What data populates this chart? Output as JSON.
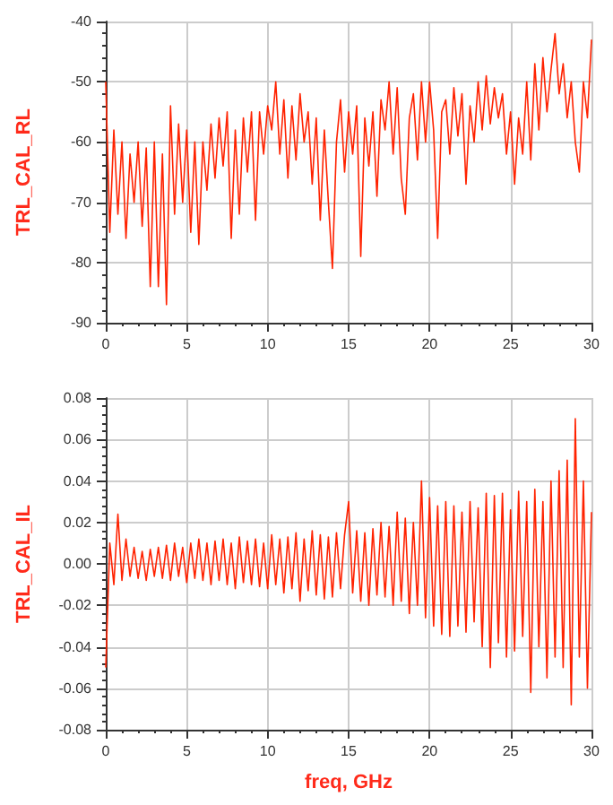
{
  "chart_data": [
    {
      "type": "line",
      "ylabel": "TRL_CAL_RL",
      "xlim": [
        0,
        30
      ],
      "xticks": [
        0,
        5,
        10,
        15,
        20,
        25,
        30
      ],
      "ylim": [
        -90,
        -40
      ],
      "yticks": [
        -90,
        -80,
        -70,
        -60,
        -50,
        -40
      ],
      "grid": true,
      "marker": "none",
      "line_style": "solid",
      "x": [
        0,
        0.25,
        0.5,
        0.75,
        1,
        1.25,
        1.5,
        1.75,
        2,
        2.25,
        2.5,
        2.75,
        3,
        3.25,
        3.5,
        3.75,
        4,
        4.25,
        4.5,
        4.75,
        5,
        5.25,
        5.5,
        5.75,
        6,
        6.25,
        6.5,
        6.75,
        7,
        7.25,
        7.5,
        7.75,
        8,
        8.25,
        8.5,
        8.75,
        9,
        9.25,
        9.5,
        9.75,
        10,
        10.25,
        10.5,
        10.75,
        11,
        11.25,
        11.5,
        11.75,
        12,
        12.25,
        12.5,
        12.75,
        13,
        13.25,
        13.5,
        13.75,
        14,
        14.25,
        14.5,
        14.75,
        15,
        15.25,
        15.5,
        15.75,
        16,
        16.25,
        16.5,
        16.75,
        17,
        17.25,
        17.5,
        17.75,
        18,
        18.25,
        18.5,
        18.75,
        19,
        19.25,
        19.5,
        19.75,
        20,
        20.25,
        20.5,
        20.75,
        21,
        21.25,
        21.5,
        21.75,
        22,
        22.25,
        22.5,
        22.75,
        23,
        23.25,
        23.5,
        23.75,
        24,
        24.25,
        24.5,
        24.75,
        25,
        25.25,
        25.5,
        25.75,
        26,
        26.25,
        26.5,
        26.75,
        27,
        27.25,
        27.5,
        27.75,
        28,
        28.25,
        28.5,
        28.75,
        29,
        29.25,
        29.5,
        29.75,
        30
      ],
      "series": [
        {
          "color": "#ff2200",
          "values": [
            -50,
            -75,
            -58,
            -72,
            -60,
            -76,
            -62,
            -70,
            -60,
            -74,
            -61,
            -84,
            -60,
            -84,
            -62,
            -87,
            -54,
            -72,
            -57,
            -70,
            -58,
            -75,
            -60,
            -77,
            -60,
            -68,
            -57,
            -66,
            -56,
            -64,
            -55,
            -76,
            -58,
            -72,
            -56,
            -65,
            -55,
            -73,
            -55,
            -62,
            -54,
            -58,
            -50,
            -62,
            -53,
            -66,
            -54,
            -63,
            -52,
            -60,
            -55,
            -67,
            -56,
            -73,
            -58,
            -70,
            -81,
            -60,
            -53,
            -65,
            -55,
            -62,
            -54,
            -79,
            -56,
            -64,
            -55,
            -69,
            -53,
            -58,
            -50,
            -62,
            -51,
            -66,
            -72,
            -56,
            -52,
            -63,
            -50,
            -60,
            -50,
            -58,
            -76,
            -55,
            -53,
            -62,
            -51,
            -59,
            -52,
            -67,
            -54,
            -60,
            -50,
            -58,
            -49,
            -57,
            -51,
            -56,
            -52,
            -62,
            -55,
            -67,
            -56,
            -62,
            -50,
            -63,
            -47,
            -58,
            -46,
            -55,
            -48,
            -42,
            -52,
            -47,
            -56,
            -50,
            -60,
            -65,
            -50,
            -56,
            -43
          ]
        }
      ]
    },
    {
      "type": "line",
      "ylabel": "TRL_CAL_IL",
      "xlabel": "freq, GHz",
      "xlim": [
        0,
        30
      ],
      "xticks": [
        0,
        5,
        10,
        15,
        20,
        25,
        30
      ],
      "ylim": [
        -0.08,
        0.08
      ],
      "yticks": [
        {
          "value": -0.08,
          "label": "-0.08"
        },
        {
          "value": -0.06,
          "label": "-0.06"
        },
        {
          "value": -0.04,
          "label": "-0.04"
        },
        {
          "value": -0.02,
          "label": "-0.02"
        },
        {
          "value": 0,
          "label": "0.00"
        },
        {
          "value": 0.02,
          "label": "0.02"
        },
        {
          "value": 0.04,
          "label": "0.04"
        },
        {
          "value": 0.06,
          "label": "0.06"
        },
        {
          "value": 0.08,
          "label": "0.08"
        }
      ],
      "grid": true,
      "marker": "none",
      "line_style": "solid",
      "x": [
        0,
        0.25,
        0.5,
        0.75,
        1,
        1.25,
        1.5,
        1.75,
        2,
        2.25,
        2.5,
        2.75,
        3,
        3.25,
        3.5,
        3.75,
        4,
        4.25,
        4.5,
        4.75,
        5,
        5.25,
        5.5,
        5.75,
        6,
        6.25,
        6.5,
        6.75,
        7,
        7.25,
        7.5,
        7.75,
        8,
        8.25,
        8.5,
        8.75,
        9,
        9.25,
        9.5,
        9.75,
        10,
        10.25,
        10.5,
        10.75,
        11,
        11.25,
        11.5,
        11.75,
        12,
        12.25,
        12.5,
        12.75,
        13,
        13.25,
        13.5,
        13.75,
        14,
        14.25,
        14.5,
        14.75,
        15,
        15.25,
        15.5,
        15.75,
        16,
        16.25,
        16.5,
        16.75,
        17,
        17.25,
        17.5,
        17.75,
        18,
        18.25,
        18.5,
        18.75,
        19,
        19.25,
        19.5,
        19.75,
        20,
        20.25,
        20.5,
        20.75,
        21,
        21.25,
        21.5,
        21.75,
        22,
        22.25,
        22.5,
        22.75,
        23,
        23.25,
        23.5,
        23.75,
        24,
        24.25,
        24.5,
        24.75,
        25,
        25.25,
        25.5,
        25.75,
        26,
        26.25,
        26.5,
        26.75,
        27,
        27.25,
        27.5,
        27.75,
        28,
        28.25,
        28.5,
        28.75,
        29,
        29.25,
        29.5,
        29.75,
        30
      ],
      "series": [
        {
          "color": "#ff2200",
          "values": [
            -0.05,
            0.01,
            -0.01,
            0.024,
            -0.008,
            0.012,
            -0.006,
            0.008,
            -0.007,
            0.006,
            -0.008,
            0.007,
            -0.006,
            0.008,
            -0.007,
            0.009,
            -0.008,
            0.01,
            -0.006,
            0.008,
            -0.009,
            0.01,
            -0.007,
            0.012,
            -0.008,
            0.01,
            -0.01,
            0.011,
            -0.008,
            0.012,
            -0.01,
            0.01,
            -0.012,
            0.013,
            -0.009,
            0.011,
            -0.01,
            0.012,
            -0.011,
            0.01,
            -0.012,
            0.014,
            -0.01,
            0.012,
            -0.014,
            0.013,
            -0.012,
            0.015,
            -0.018,
            0.012,
            -0.013,
            0.016,
            -0.015,
            0.014,
            -0.017,
            0.013,
            -0.016,
            0.015,
            -0.012,
            0.014,
            0.03,
            -0.014,
            0.016,
            -0.018,
            0.015,
            -0.02,
            0.017,
            -0.015,
            0.02,
            -0.016,
            0.018,
            -0.02,
            0.025,
            -0.018,
            0.022,
            -0.024,
            0.02,
            -0.02,
            0.04,
            -0.026,
            0.032,
            -0.03,
            0.028,
            -0.034,
            0.03,
            -0.035,
            0.028,
            -0.03,
            0.025,
            -0.033,
            0.03,
            -0.028,
            0.027,
            -0.04,
            0.034,
            -0.05,
            0.033,
            -0.038,
            0.034,
            -0.045,
            0.026,
            -0.042,
            0.035,
            -0.035,
            0.03,
            -0.062,
            0.036,
            -0.04,
            0.03,
            -0.055,
            0.04,
            -0.045,
            0.045,
            -0.05,
            0.05,
            -0.068,
            0.07,
            -0.045,
            0.04,
            -0.06,
            0.025
          ]
        }
      ]
    }
  ]
}
